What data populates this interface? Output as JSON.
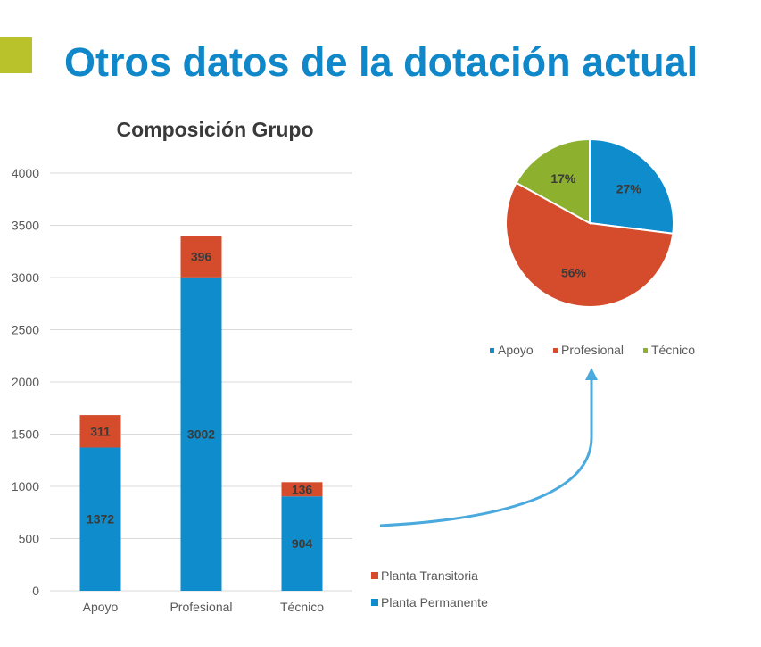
{
  "slide": {
    "title": "Otros datos de la dotación actual",
    "accent_color": "#b9c22b",
    "title_color": "#0f87c9"
  },
  "chart_data": [
    {
      "type": "bar",
      "stacked": true,
      "title": "Composición Grupo",
      "categories": [
        "Apoyo",
        "Profesional",
        "Técnico"
      ],
      "series": [
        {
          "name": "Planta Permanente",
          "values": [
            1372,
            3002,
            904
          ],
          "color": "#0f8ccb"
        },
        {
          "name": "Planta Transitoria",
          "values": [
            311,
            396,
            136
          ],
          "color": "#d44c2c"
        }
      ],
      "ylim": [
        0,
        4000
      ],
      "yticks": [
        0,
        500,
        1000,
        1500,
        2000,
        2500,
        3000,
        3500,
        4000
      ],
      "grid": true,
      "legend": "right-bottom"
    },
    {
      "type": "pie",
      "categories": [
        "Apoyo",
        "Profesional",
        "Técnico"
      ],
      "values": [
        27,
        56,
        17
      ],
      "labels": [
        "27%",
        "56%",
        "17%"
      ],
      "colors": [
        "#0f8ccb",
        "#d44c2c",
        "#8db02f"
      ],
      "legend": "bottom"
    }
  ],
  "arrow": {
    "color": "#4aa9dd"
  }
}
